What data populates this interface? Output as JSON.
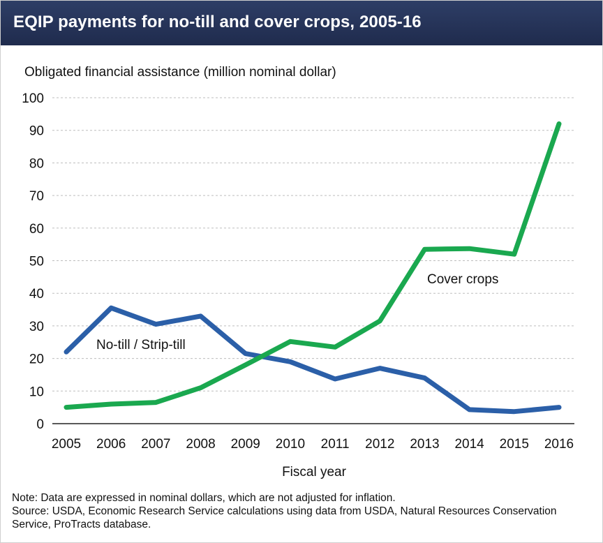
{
  "header": {
    "title": "EQIP payments for no-till and cover crops, 2005-16"
  },
  "chart_data": {
    "type": "line",
    "title": "EQIP payments for no-till and cover crops, 2005-16",
    "ylabel": "Obligated financial assistance (million nominal dollar)",
    "xlabel": "Fiscal year",
    "categories": [
      "2005",
      "2006",
      "2007",
      "2008",
      "2009",
      "2010",
      "2011",
      "2012",
      "2013",
      "2014",
      "2015",
      "2016"
    ],
    "ylim": [
      0,
      100
    ],
    "yticks": [
      0,
      10,
      20,
      30,
      40,
      50,
      60,
      70,
      80,
      90,
      100
    ],
    "grid": true,
    "series": [
      {
        "name": "No-till / Strip-till",
        "color": "#2b5fa8",
        "values": [
          22,
          35.5,
          30.5,
          33,
          21.5,
          19,
          13.7,
          17,
          14,
          4.3,
          3.7,
          5
        ]
      },
      {
        "name": "Cover crops",
        "color": "#1aa84f",
        "values": [
          5,
          6,
          6.5,
          11,
          18,
          25.2,
          23.5,
          31.5,
          53.5,
          53.7,
          52,
          92
        ]
      }
    ]
  },
  "notes": {
    "note": "Note: Data are expressed in nominal dollars, which are not adjusted for inflation.",
    "source": "Source: USDA, Economic Research Service calculations using data from USDA, Natural Resources Conservation Service, ProTracts database."
  }
}
